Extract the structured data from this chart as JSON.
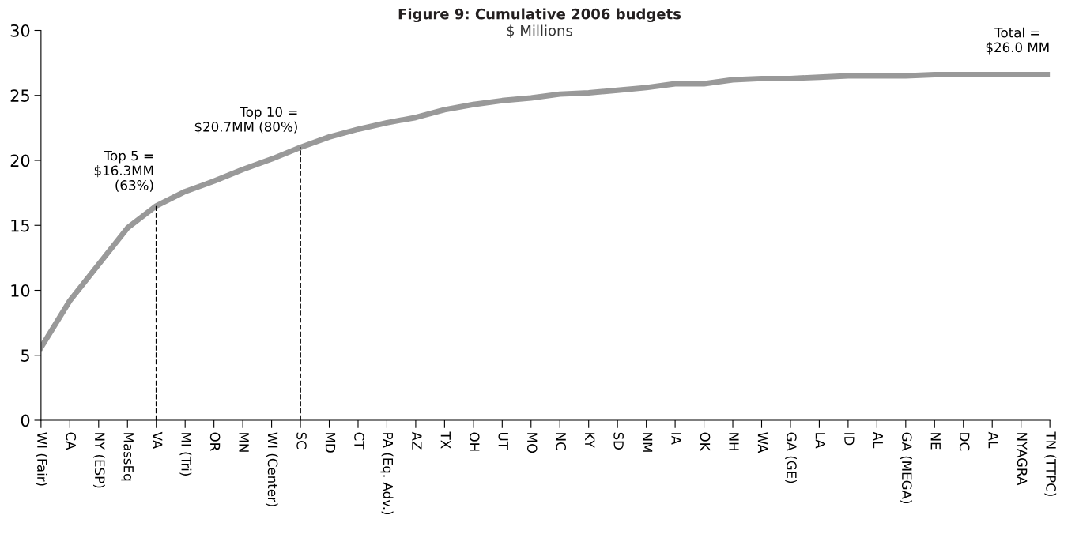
{
  "chart_data": {
    "type": "line",
    "title": "Figure 9: Cumulative 2006 budgets",
    "subtitle": "$ Millions",
    "categories": [
      "WI (Fair)",
      "CA",
      "NY (ESP)",
      "MassEq",
      "VA",
      "MI (Tri)",
      "OR",
      "MN",
      "WI (Center)",
      "SC",
      "MD",
      "CT",
      "PA (Eq. Adv.)",
      "AZ",
      "TX",
      "OH",
      "UT",
      "MO",
      "NC",
      "KY",
      "SD",
      "NM",
      "IA",
      "OK",
      "NH",
      "WA",
      "GA (GE)",
      "LA",
      "ID",
      "AL",
      "GA (MEGA)",
      "NE",
      "DC",
      "AL",
      "NYAGRA",
      "TN (TTPC)"
    ],
    "series": [
      {
        "color": "#999999",
        "values": [
          5.6,
          9.2,
          12.0,
          14.8,
          16.5,
          17.6,
          18.4,
          19.3,
          20.1,
          21.0,
          21.8,
          22.4,
          22.9,
          23.3,
          23.9,
          24.3,
          24.6,
          24.8,
          25.1,
          25.2,
          25.4,
          25.6,
          25.9,
          25.9,
          26.2,
          26.3,
          26.3,
          26.4,
          26.5,
          26.5,
          26.5,
          26.6,
          26.6,
          26.6,
          26.6,
          26.6
        ]
      }
    ],
    "ylim": [
      0,
      30
    ],
    "yticks": [
      0,
      5,
      10,
      15,
      20,
      25,
      30
    ],
    "grid": false,
    "marker": "none",
    "line_style": "solid",
    "ref_lines": [
      {
        "axis": "x",
        "value": "VA",
        "color": "#000000",
        "line_style": "dashed"
      },
      {
        "axis": "x",
        "value": "SC",
        "color": "#000000",
        "line_style": "dashed"
      }
    ],
    "annotations": [
      {
        "text": "Top 5 =\n$16.3MM\n(63%)",
        "x": "VA",
        "y": 16.5
      },
      {
        "text": "Top 10 =\n$20.7MM (80%)",
        "x": "SC",
        "y": 21.0
      },
      {
        "text": "Total =\n$26.0 MM",
        "x": "TN (TTPC)",
        "y": 26.6
      }
    ]
  }
}
